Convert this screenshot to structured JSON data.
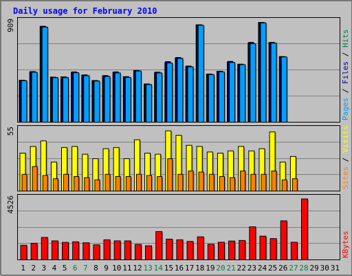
{
  "chart_data": {
    "type": "bar",
    "title": "Daily usage for February 2010",
    "categories": [
      "1",
      "2",
      "3",
      "4",
      "5",
      "6",
      "7",
      "8",
      "9",
      "10",
      "11",
      "12",
      "13",
      "14",
      "15",
      "16",
      "17",
      "18",
      "19",
      "20",
      "21",
      "22",
      "23",
      "24",
      "25",
      "26",
      "27",
      "28",
      "29",
      "30",
      "31"
    ],
    "weekend_days": [
      "6",
      "7",
      "13",
      "14",
      "20",
      "21",
      "27",
      "28"
    ],
    "colors": {
      "hits": "#008040",
      "files": "#00a0ff",
      "pages": "#0000a0",
      "visits": "#ffff00",
      "sites": "#ff8000",
      "kbytes": "#ff0000",
      "weekday_label": "#000000",
      "weekend_label": "#008040"
    },
    "panels": [
      {
        "id": "top",
        "ytick": "909",
        "ymax": 909,
        "side_label": [
          "Pages",
          "Files",
          "Hits"
        ],
        "side_colors": [
          "#00a0ff",
          "#0000a0",
          "#008040"
        ],
        "series": [
          {
            "name": "Hits",
            "values": [
              380,
              456,
              866,
              408,
              410,
              452,
              425,
              377,
              420,
              452,
              412,
              467,
              345,
              450,
              540,
              582,
              505,
              881,
              436,
              460,
              546,
              525,
              716,
              902,
              720,
              594,
              0,
              0,
              0,
              0,
              0
            ]
          },
          {
            "name": "Files",
            "values": [
              375,
              452,
              860,
              403,
              403,
              447,
              420,
              372,
              413,
              445,
              405,
              463,
              340,
              445,
              535,
              577,
              500,
              876,
              430,
              455,
              540,
              520,
              710,
              898,
              715,
              590,
              0,
              0,
              0,
              0,
              0
            ]
          },
          {
            "name": "Pages",
            "values": [
              378,
              458,
              868,
              404,
              385,
              455,
              428,
              374,
              422,
              455,
              411,
              468,
              346,
              453,
              548,
              585,
              508,
              880,
              435,
              461,
              550,
              518,
              722,
              902,
              722,
              588,
              0,
              0,
              0,
              0,
              0
            ]
          }
        ]
      },
      {
        "id": "mid",
        "ytick": "55",
        "ymax": 55,
        "side_label": [
          "Sites",
          "Visits"
        ],
        "side_colors": [
          "#ff8000",
          "#ffff00"
        ],
        "series": [
          {
            "name": "Visits",
            "values": [
              34,
              40,
              45,
              26,
              39,
              40,
              33,
              29,
              38,
              39,
              29,
              46,
              34,
              33,
              54,
              50,
              41,
              40,
              35,
              34,
              36,
              40,
              36,
              38,
              53,
              26,
              31,
              0,
              0,
              0,
              0
            ]
          },
          {
            "name": "Sites",
            "values": [
              15,
              22,
              14,
              11,
              15,
              13,
              12,
              10,
              15,
              13,
              13,
              15,
              14,
              13,
              29,
              15,
              18,
              17,
              15,
              13,
              12,
              18,
              15,
              15,
              18,
              10,
              11,
              0,
              0,
              0,
              0
            ]
          }
        ]
      },
      {
        "id": "bot",
        "ytick": "4526",
        "ymax": 4526,
        "side_label": [
          "KBytes"
        ],
        "side_colors": [
          "#ff0000"
        ],
        "series": [
          {
            "name": "KBytes",
            "values": [
              1080,
              1225,
              1656,
              1400,
              1290,
              1330,
              1260,
              1110,
              1480,
              1400,
              1400,
              1140,
              1040,
              2090,
              1530,
              1480,
              1360,
              1700,
              1150,
              1300,
              1390,
              1430,
              2440,
              1750,
              1570,
              2880,
              1300,
              4500,
              0,
              0,
              0
            ]
          }
        ]
      }
    ]
  }
}
